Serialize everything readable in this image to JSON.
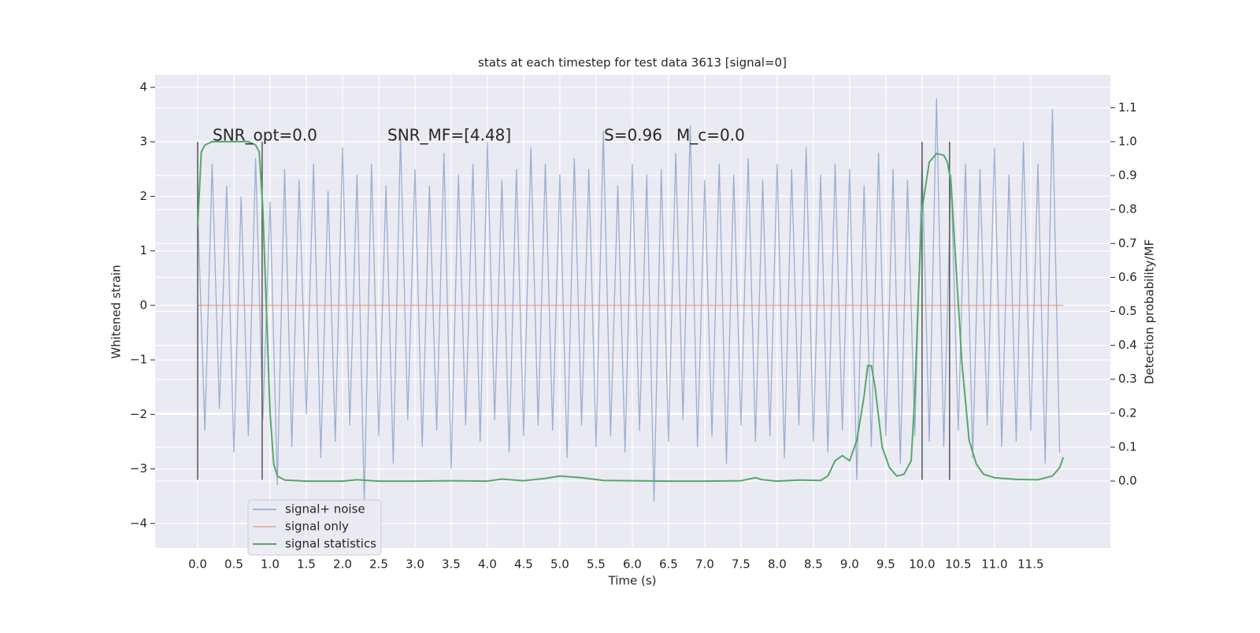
{
  "chart_data": {
    "type": "line",
    "title": "stats at each timestep for test data 3613 [signal=0]",
    "xlabel": "Time (s)",
    "ylabel": "Whitened strain",
    "y2label": "Detection probability/MF",
    "xlim": [
      -0.587,
      12.6
    ],
    "ylim": [
      -4.45,
      4.23
    ],
    "y2lim": [
      -0.197,
      1.197
    ],
    "xticks": [
      {
        "value": 0,
        "label": "0.0"
      },
      0.5,
      {
        "value": 1,
        "label": "1.0"
      },
      1.5,
      {
        "value": 2,
        "label": "2.0"
      },
      2.5,
      {
        "value": 3,
        "label": "3.0"
      },
      3.5,
      {
        "value": 4,
        "label": "4.0"
      },
      4.5,
      {
        "value": 5,
        "label": "5.0"
      },
      5.5,
      {
        "value": 6,
        "label": "6.0"
      },
      6.5,
      {
        "value": 7,
        "label": "7.0"
      },
      7.5,
      {
        "value": 8,
        "label": "8.0"
      },
      8.5,
      {
        "value": 9,
        "label": "9.0"
      },
      9.5,
      {
        "value": 10,
        "label": "10.0"
      },
      10.5,
      {
        "value": 11,
        "label": "11.0"
      },
      11.5
    ],
    "yticks": [
      {
        "value": -4,
        "label": "−4"
      },
      {
        "value": -3,
        "label": "−3"
      },
      {
        "value": -2,
        "label": "−2"
      },
      {
        "value": -1,
        "label": "−1"
      },
      0,
      1,
      2,
      3,
      4
    ],
    "y2ticks": [
      {
        "value": 0,
        "label": "0.0"
      },
      0.1,
      0.2,
      0.3,
      0.4,
      0.5,
      0.6,
      0.7,
      0.8,
      0.9,
      {
        "value": 1,
        "label": "1.0"
      },
      1.1
    ],
    "grid": true,
    "legend": "lower left",
    "series": [
      {
        "name": "signal+ noise",
        "color": "#4c72b0",
        "x": [
          0.0,
          0.1,
          0.2,
          0.3,
          0.4,
          0.5,
          0.6,
          0.7,
          0.8,
          0.9,
          1.0,
          1.1,
          1.2,
          1.3,
          1.4,
          1.5,
          1.6,
          1.7,
          1.8,
          1.9,
          2.0,
          2.1,
          2.2,
          2.3,
          2.4,
          2.5,
          2.6,
          2.7,
          2.8,
          2.9,
          3.0,
          3.1,
          3.2,
          3.3,
          3.4,
          3.5,
          3.6,
          3.7,
          3.8,
          3.9,
          4.0,
          4.1,
          4.2,
          4.3,
          4.4,
          4.5,
          4.6,
          4.7,
          4.8,
          4.9,
          5.0,
          5.1,
          5.2,
          5.3,
          5.4,
          5.5,
          5.6,
          5.7,
          5.8,
          5.9,
          6.0,
          6.1,
          6.2,
          6.3,
          6.4,
          6.5,
          6.6,
          6.7,
          6.8,
          6.9,
          7.0,
          7.1,
          7.2,
          7.3,
          7.4,
          7.5,
          7.6,
          7.7,
          7.8,
          7.9,
          8.0,
          8.1,
          8.2,
          8.3,
          8.4,
          8.5,
          8.6,
          8.7,
          8.8,
          8.9,
          9.0,
          9.1,
          9.2,
          9.3,
          9.4,
          9.5,
          9.6,
          9.7,
          9.8,
          9.9,
          10.0,
          10.1,
          10.2,
          10.3,
          10.4,
          10.5,
          10.6,
          10.7,
          10.8,
          10.9,
          11.0,
          11.1,
          11.2,
          11.3,
          11.4,
          11.5,
          11.6,
          11.7,
          11.8,
          11.9
        ],
        "values": [
          1.8,
          -2.3,
          2.6,
          -1.9,
          2.2,
          -2.7,
          2.0,
          -2.4,
          2.7,
          -2.1,
          1.9,
          -3.3,
          2.5,
          -2.6,
          2.3,
          -2.0,
          2.6,
          -2.8,
          2.1,
          -2.5,
          2.9,
          -2.2,
          2.4,
          -3.6,
          2.6,
          -2.4,
          2.2,
          -2.9,
          3.1,
          -2.1,
          2.5,
          -2.6,
          2.2,
          -2.3,
          2.8,
          -3.0,
          2.4,
          -2.2,
          2.6,
          -2.5,
          3.0,
          -2.1,
          2.3,
          -2.7,
          2.5,
          -2.4,
          2.9,
          -2.2,
          2.6,
          -2.3,
          2.4,
          -2.8,
          2.7,
          -2.2,
          2.5,
          -2.6,
          3.2,
          -2.4,
          2.2,
          -2.7,
          2.6,
          -2.3,
          2.4,
          -3.6,
          2.5,
          -2.5,
          2.8,
          -2.1,
          3.3,
          -2.6,
          2.3,
          -2.4,
          2.6,
          -2.9,
          2.4,
          -2.2,
          2.7,
          -2.5,
          2.3,
          -2.4,
          2.6,
          -2.8,
          2.5,
          -2.2,
          2.9,
          -2.5,
          2.4,
          -2.7,
          2.6,
          -2.3,
          2.5,
          -3.2,
          2.2,
          -2.6,
          2.8,
          -2.4,
          2.5,
          -2.9,
          2.3,
          -2.4,
          2.7,
          -2.5,
          3.8,
          -2.6,
          2.4,
          -2.3,
          2.6,
          -2.8,
          2.5,
          -2.2,
          2.9,
          -2.6,
          2.4,
          -2.5,
          3.0,
          -2.3,
          2.6,
          -2.9,
          3.6,
          -2.7
        ]
      },
      {
        "name": "signal only",
        "color": "#dd8452",
        "x": [
          0.0,
          11.95
        ],
        "values": [
          0,
          0
        ]
      },
      {
        "name": "signal statistics",
        "color": "#55a868",
        "axis": "y2",
        "x": [
          0.0,
          0.05,
          0.1,
          0.2,
          0.3,
          0.4,
          0.5,
          0.6,
          0.7,
          0.8,
          0.85,
          0.9,
          0.95,
          1.0,
          1.05,
          1.1,
          1.2,
          1.5,
          2.0,
          2.2,
          2.5,
          3.0,
          3.5,
          4.0,
          4.2,
          4.5,
          4.8,
          5.0,
          5.3,
          5.6,
          6.0,
          6.5,
          7.0,
          7.5,
          7.7,
          7.8,
          8.0,
          8.3,
          8.6,
          8.7,
          8.8,
          8.9,
          9.0,
          9.1,
          9.2,
          9.25,
          9.3,
          9.35,
          9.45,
          9.55,
          9.65,
          9.75,
          9.85,
          9.9,
          9.95,
          10.0,
          10.1,
          10.2,
          10.3,
          10.35,
          10.4,
          10.45,
          10.55,
          10.65,
          10.75,
          10.85,
          11.0,
          11.3,
          11.6,
          11.8,
          11.9,
          11.95
        ],
        "values": [
          0.75,
          0.97,
          0.99,
          1.0,
          1.0,
          1.0,
          1.0,
          1.0,
          1.0,
          0.99,
          0.97,
          0.8,
          0.5,
          0.2,
          0.05,
          0.015,
          0.003,
          0.0,
          0.0,
          0.004,
          0.0,
          0.0,
          0.001,
          0.0,
          0.006,
          0.001,
          0.008,
          0.015,
          0.01,
          0.002,
          0.001,
          0.0,
          0.0,
          0.001,
          0.01,
          0.004,
          0.0,
          0.003,
          0.002,
          0.015,
          0.06,
          0.075,
          0.06,
          0.12,
          0.25,
          0.34,
          0.34,
          0.28,
          0.1,
          0.04,
          0.015,
          0.02,
          0.06,
          0.25,
          0.55,
          0.8,
          0.94,
          0.965,
          0.96,
          0.94,
          0.88,
          0.7,
          0.35,
          0.12,
          0.05,
          0.02,
          0.01,
          0.005,
          0.004,
          0.015,
          0.04,
          0.07
        ]
      }
    ],
    "vlines": {
      "x": [
        0.0,
        0.89,
        10.0,
        10.38
      ],
      "ymin": -3.2,
      "ymax": 3.0,
      "color": "#555555"
    },
    "annotations": [
      "SNR_opt=0.0",
      "SNR_MF=[4.48]",
      "S=0.96",
      "M_c=0.0"
    ]
  }
}
